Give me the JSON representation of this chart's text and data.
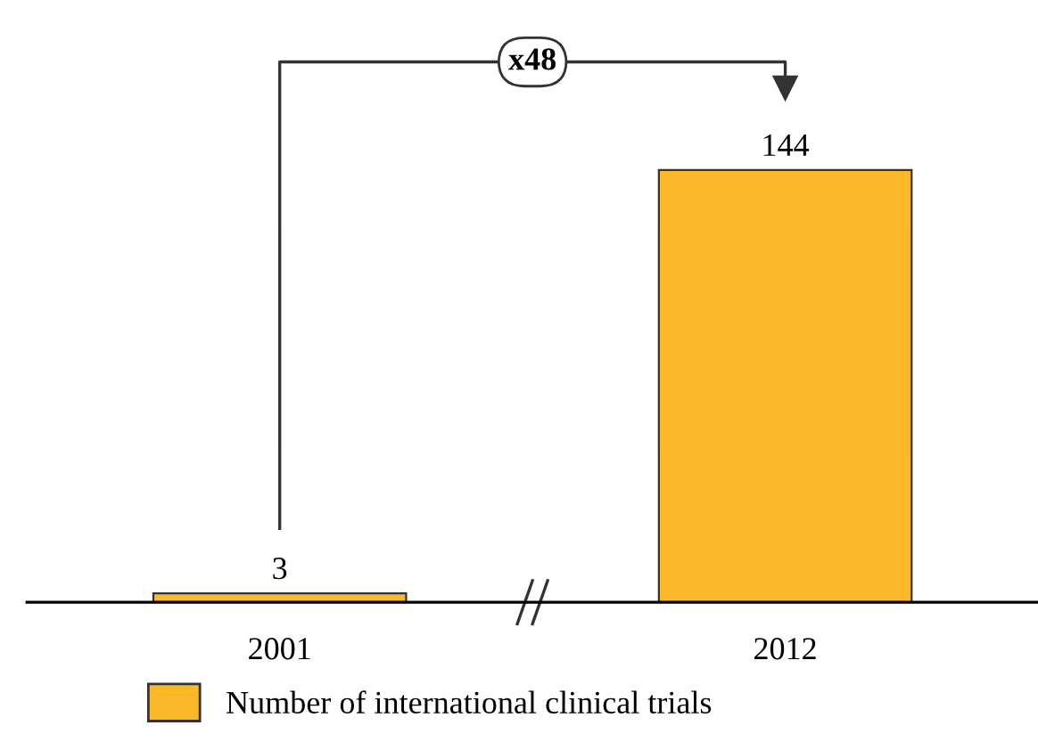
{
  "chart_data": {
    "type": "bar",
    "categories": [
      "2001",
      "2012"
    ],
    "series": [
      {
        "name": "Number of international clinical trials",
        "color": "#fbb829",
        "values": [
          3,
          144
        ]
      }
    ],
    "data_labels": true,
    "annotations": [
      "x48"
    ],
    "legend": "bottom",
    "grid": false
  }
}
